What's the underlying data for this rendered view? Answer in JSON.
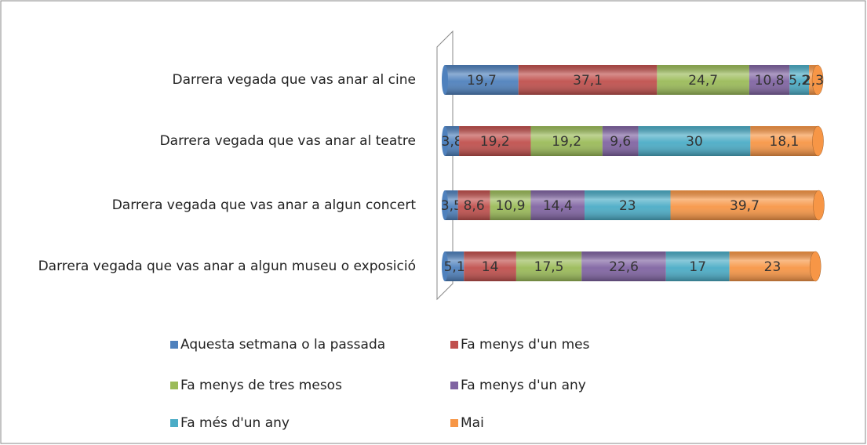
{
  "chart_data": {
    "type": "bar",
    "orientation": "horizontal",
    "stacked": true,
    "categories": [
      "Darrera vegada que vas anar al cine",
      "Darrera vegada que vas anar al teatre",
      "Darrera vegada que vas anar a algun concert",
      "Darrera vegada que vas anar a algun museu o exposició"
    ],
    "xlim": [
      0,
      100
    ],
    "series": [
      {
        "name": "Aquesta setmana o la passada",
        "color": "#4f81bd",
        "values": [
          19.7,
          3.8,
          3.5,
          5.1
        ],
        "value_labels": [
          "19,7",
          "3,8",
          "3,5",
          "5,1"
        ]
      },
      {
        "name": "Fa menys d'un mes",
        "color": "#c0504d",
        "values": [
          37.1,
          19.2,
          8.6,
          14
        ],
        "value_labels": [
          "37,1",
          "19,2",
          "8,6",
          "14"
        ]
      },
      {
        "name": "Fa menys de tres mesos",
        "color": "#9bbb59",
        "values": [
          24.7,
          19.2,
          10.9,
          17.5
        ],
        "value_labels": [
          "24,7",
          "19,2",
          "10,9",
          "17,5"
        ]
      },
      {
        "name": "Fa menys d'un any",
        "color": "#8064a2",
        "values": [
          10.8,
          9.6,
          14.4,
          22.6
        ],
        "value_labels": [
          "10,8",
          "9,6",
          "14,4",
          "22,6"
        ]
      },
      {
        "name": "Fa més d'un any",
        "color": "#4bacc6",
        "values": [
          5.2,
          30,
          23,
          17
        ],
        "value_labels": [
          "5,2",
          "30",
          "23",
          "17"
        ]
      },
      {
        "name": "Mai",
        "color": "#f79646",
        "values": [
          2.3,
          18.1,
          39.7,
          23
        ],
        "value_labels": [
          "2,3",
          "18,1",
          "39,7",
          "23"
        ]
      }
    ],
    "legend": "bottom"
  }
}
